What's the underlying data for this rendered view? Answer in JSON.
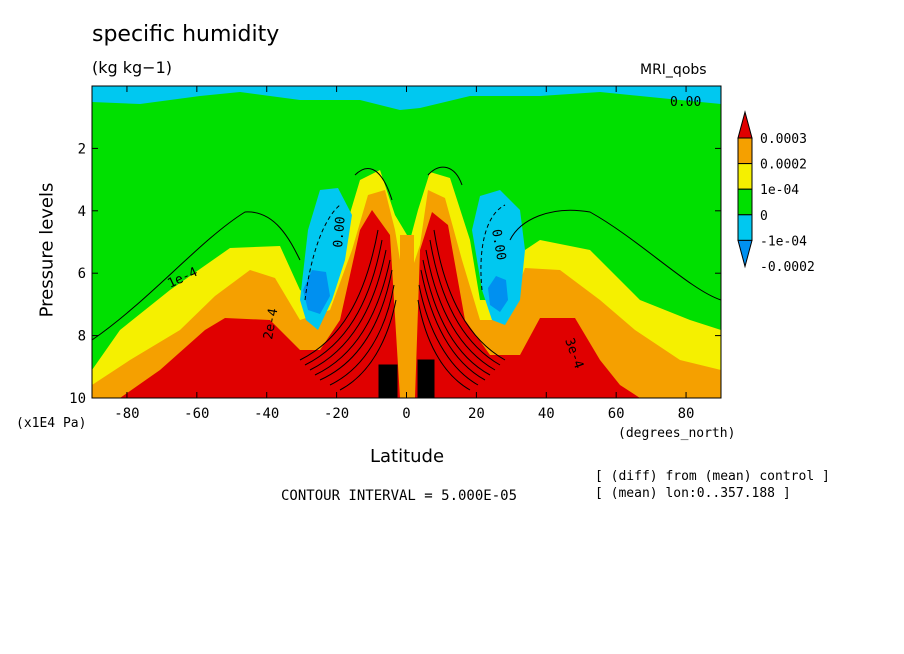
{
  "chart_data": {
    "type": "contour",
    "title": "specific humidity",
    "units": "(kg kg−1)",
    "dataset": "MRI_qobs",
    "xlabel": "Latitude",
    "x_units": "(degrees_north)",
    "ylabel": "Pressure levels",
    "y_units": "(x1E4 Pa)",
    "xlim": [
      -90,
      90
    ],
    "ylim": [
      10,
      0
    ],
    "x_ticks": [
      "-80",
      "-60",
      "-40",
      "-20",
      "0",
      "20",
      "40",
      "60",
      "80"
    ],
    "y_ticks": [
      "2",
      "4",
      "6",
      "8",
      "10"
    ],
    "contour_interval": "CONTOUR INTERVAL = 5.000E-05",
    "notes": [
      "[ (diff) from (mean) control ]",
      "[ (mean) lon:0..357.188 ]"
    ],
    "colorbar": {
      "labels": [
        "0.0003",
        "0.0002",
        "1e-04",
        "0",
        "-1e-04",
        "-0.0002"
      ],
      "colors": [
        "#e00000",
        "#f5a000",
        "#f5f000",
        "#00e000",
        "#00c8f0",
        "#0090f0"
      ]
    },
    "contour_labels": [
      "0.00",
      "1e-4",
      "2e-4",
      "3e-4",
      "0.00",
      "0.00"
    ]
  }
}
